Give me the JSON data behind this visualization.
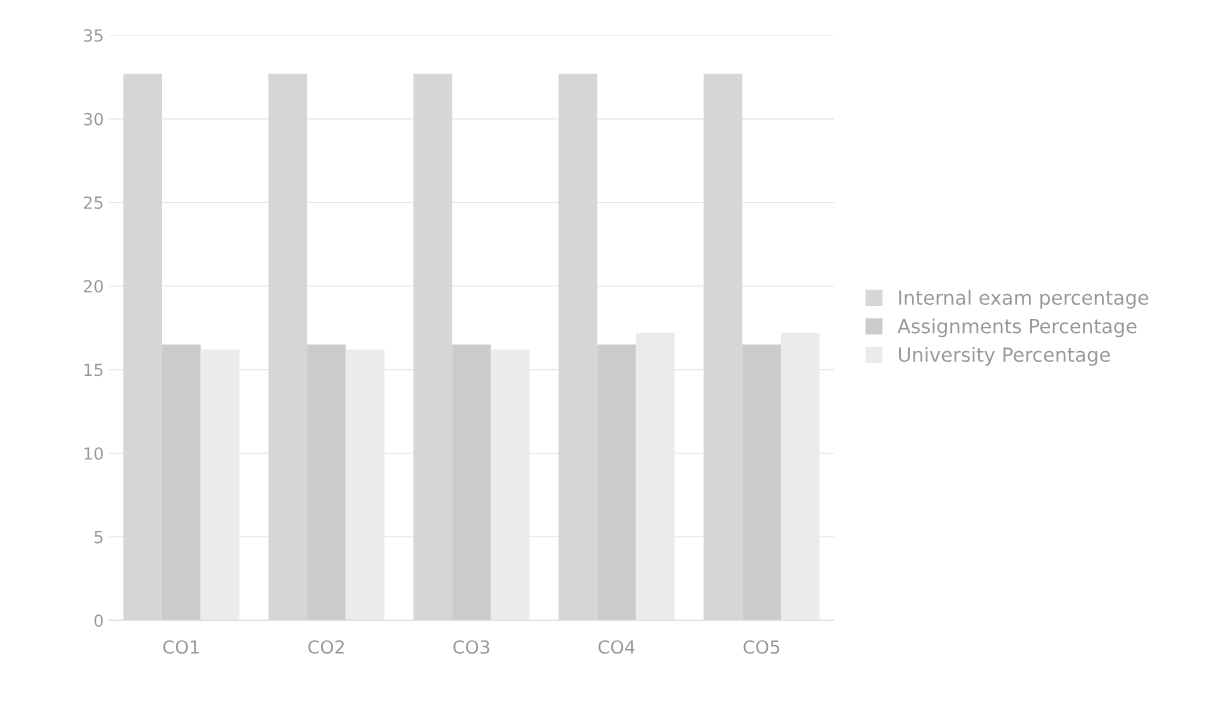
{
  "chart_data": {
    "type": "bar",
    "categories": [
      "CO1",
      "CO2",
      "CO3",
      "CO4",
      "CO5"
    ],
    "series": [
      {
        "name": "Internal exam percentage",
        "color": "#d6d6d6",
        "values": [
          32.7,
          32.7,
          32.7,
          32.7,
          32.7
        ]
      },
      {
        "name": "Assignments Percentage",
        "color": "#cbcbcb",
        "values": [
          16.5,
          16.5,
          16.5,
          16.5,
          16.5
        ]
      },
      {
        "name": "University Percentage",
        "color": "#ebebeb",
        "values": [
          16.2,
          16.2,
          16.2,
          17.2,
          17.2
        ]
      }
    ],
    "ylim": [
      0,
      35
    ],
    "yticks": [
      0,
      5,
      10,
      15,
      20,
      25,
      30,
      35
    ],
    "grid": "y",
    "legend": "right"
  }
}
